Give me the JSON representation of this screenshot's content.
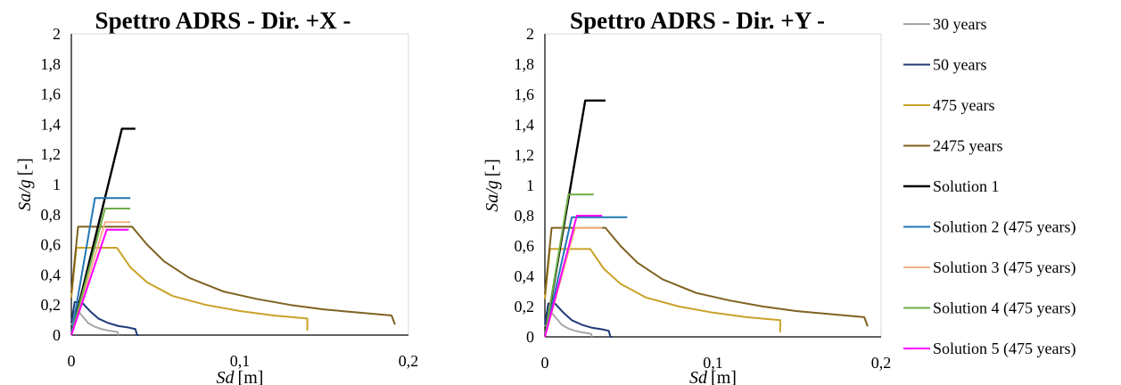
{
  "colors": {
    "30 years": "#a6a6a6",
    "50 years": "#1f3a78",
    "475 years": "#c9a227",
    "2475 years": "#7f6120",
    "Solution 1": "#000000",
    "Solution 2 (475 years)": "#1f77b4",
    "Solution 3 (475 years)": "#f4b183",
    "Solution 4 (475 years)": "#70ad47",
    "Solution 5 (475 years)": "#ff00ff"
  },
  "legend": {
    "placement": "right",
    "entries": [
      {
        "label": "30 years"
      },
      {
        "label": "50 years"
      },
      {
        "label": "475 years"
      },
      {
        "label": "2475 years"
      },
      {
        "label": "Solution 1"
      },
      {
        "label": "Solution 2 (475 years)"
      },
      {
        "label": "Solution 3 (475 years)"
      },
      {
        "label": "Solution 4 (475 years)"
      },
      {
        "label": "Solution 5 (475 years)"
      }
    ]
  },
  "chart_data": [
    {
      "type": "line",
      "title": "Spettro ADRS - Dir. +X -",
      "xlabel": {
        "symbol": "Sd",
        "unit": "[m]"
      },
      "ylabel": {
        "symbol": "Sa/g",
        "unit": "[-]"
      },
      "xlim": [
        0,
        0.2
      ],
      "ylim": [
        0,
        2
      ],
      "xticks": [
        "0",
        "0,1",
        "0,2"
      ],
      "yticks": [
        "0",
        "0,2",
        "0,4",
        "0,6",
        "0,8",
        "1",
        "1,2",
        "1,4",
        "1,6",
        "1,8",
        "2"
      ],
      "grid": false,
      "series": [
        {
          "name": "30 years",
          "x": [
            0,
            0.0015,
            0.004,
            0.007,
            0.01,
            0.014,
            0.018,
            0.022,
            0.025,
            0.0275,
            0.028
          ],
          "y": [
            0.07,
            0.16,
            0.16,
            0.12,
            0.08,
            0.055,
            0.04,
            0.03,
            0.025,
            0.02,
            0.0
          ]
        },
        {
          "name": "50 years",
          "x": [
            0,
            0.002,
            0.006,
            0.011,
            0.016,
            0.022,
            0.028,
            0.034,
            0.038,
            0.039,
            0.04
          ],
          "y": [
            0.08,
            0.22,
            0.22,
            0.16,
            0.11,
            0.08,
            0.06,
            0.05,
            0.04,
            0.0,
            0.0
          ]
        },
        {
          "name": "475 years",
          "x": [
            0,
            0.003,
            0.01,
            0.02,
            0.027,
            0.035,
            0.045,
            0.06,
            0.08,
            0.1,
            0.12,
            0.14,
            0.14
          ],
          "y": [
            0.25,
            0.58,
            0.58,
            0.58,
            0.58,
            0.45,
            0.35,
            0.26,
            0.2,
            0.16,
            0.13,
            0.11,
            0.03
          ]
        },
        {
          "name": "2475 years",
          "x": [
            0,
            0.004,
            0.012,
            0.024,
            0.036,
            0.045,
            0.055,
            0.07,
            0.09,
            0.11,
            0.13,
            0.15,
            0.17,
            0.19,
            0.192
          ],
          "y": [
            0.28,
            0.72,
            0.72,
            0.72,
            0.72,
            0.6,
            0.49,
            0.38,
            0.29,
            0.24,
            0.2,
            0.17,
            0.15,
            0.13,
            0.07
          ]
        },
        {
          "name": "Solution 1",
          "x": [
            0,
            0.03,
            0.038
          ],
          "y": [
            0,
            1.37,
            1.37
          ]
        },
        {
          "name": "Solution 2 (475 years)",
          "x": [
            0,
            0.014,
            0.035
          ],
          "y": [
            0,
            0.91,
            0.91
          ]
        },
        {
          "name": "Solution 3 (475 years)",
          "x": [
            0,
            0.02,
            0.035
          ],
          "y": [
            0,
            0.75,
            0.75
          ]
        },
        {
          "name": "Solution 4 (475 years)",
          "x": [
            0,
            0.02,
            0.035
          ],
          "y": [
            0,
            0.84,
            0.84
          ]
        },
        {
          "name": "Solution 5 (475 years)",
          "x": [
            0,
            0.021,
            0.034
          ],
          "y": [
            0,
            0.7,
            0.7
          ]
        }
      ]
    },
    {
      "type": "line",
      "title": "Spettro ADRS - Dir. +Y -",
      "xlabel": {
        "symbol": "Sd",
        "unit": "[m]"
      },
      "ylabel": {
        "symbol": "Sa/g",
        "unit": "[-]"
      },
      "xlim": [
        0,
        0.2
      ],
      "ylim": [
        0,
        2
      ],
      "xticks": [
        "0",
        "0,1",
        "0,2"
      ],
      "yticks": [
        "0",
        "0,2",
        "0,4",
        "0,6",
        "0,8",
        "1",
        "1,2",
        "1,4",
        "1,6",
        "1,8",
        "2"
      ],
      "grid": false,
      "series": [
        {
          "name": "30 years",
          "x": [
            0,
            0.0015,
            0.004,
            0.007,
            0.01,
            0.014,
            0.018,
            0.022,
            0.025,
            0.0275,
            0.028
          ],
          "y": [
            0.07,
            0.16,
            0.16,
            0.12,
            0.08,
            0.055,
            0.04,
            0.03,
            0.025,
            0.02,
            0.0
          ]
        },
        {
          "name": "50 years",
          "x": [
            0,
            0.002,
            0.006,
            0.011,
            0.016,
            0.022,
            0.028,
            0.034,
            0.038,
            0.039,
            0.04
          ],
          "y": [
            0.08,
            0.22,
            0.22,
            0.16,
            0.11,
            0.08,
            0.06,
            0.05,
            0.04,
            0.0,
            0.0
          ]
        },
        {
          "name": "475 years",
          "x": [
            0,
            0.003,
            0.01,
            0.02,
            0.027,
            0.035,
            0.045,
            0.06,
            0.08,
            0.1,
            0.12,
            0.14,
            0.14
          ],
          "y": [
            0.25,
            0.58,
            0.58,
            0.58,
            0.58,
            0.45,
            0.35,
            0.26,
            0.2,
            0.16,
            0.13,
            0.11,
            0.03
          ]
        },
        {
          "name": "2475 years",
          "x": [
            0,
            0.004,
            0.012,
            0.024,
            0.036,
            0.045,
            0.055,
            0.07,
            0.09,
            0.11,
            0.13,
            0.15,
            0.17,
            0.19,
            0.192
          ],
          "y": [
            0.28,
            0.72,
            0.72,
            0.72,
            0.72,
            0.6,
            0.49,
            0.38,
            0.29,
            0.24,
            0.2,
            0.17,
            0.15,
            0.13,
            0.07
          ]
        },
        {
          "name": "Solution 1",
          "x": [
            0,
            0.024,
            0.036
          ],
          "y": [
            0,
            1.56,
            1.56
          ]
        },
        {
          "name": "Solution 2 (475 years)",
          "x": [
            0,
            0.016,
            0.049
          ],
          "y": [
            0,
            0.79,
            0.79
          ]
        },
        {
          "name": "Solution 3 (475 years)",
          "x": [
            0,
            0.018,
            0.034
          ],
          "y": [
            0,
            0.72,
            0.72
          ]
        },
        {
          "name": "Solution 4 (475 years)",
          "x": [
            0,
            0.014,
            0.029
          ],
          "y": [
            0,
            0.94,
            0.94
          ]
        },
        {
          "name": "Solution 5 (475 years)",
          "x": [
            0,
            0.019,
            0.034
          ],
          "y": [
            0,
            0.8,
            0.8
          ]
        }
      ]
    }
  ]
}
